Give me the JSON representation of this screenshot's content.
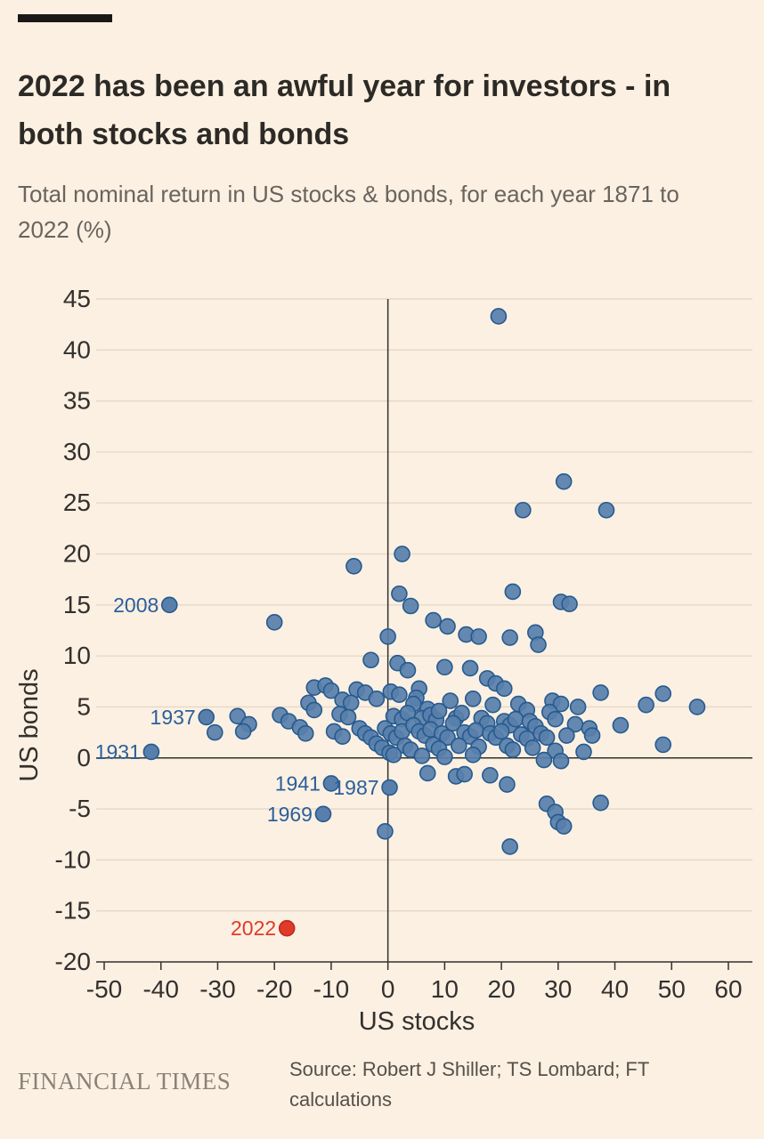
{
  "header": {
    "title": "2022 has been an awful year for investors - in both stocks and bonds",
    "subtitle": "Total nominal return in US stocks & bonds, for each year 1871 to 2022 (%)"
  },
  "footer": {
    "brand": "FINANCIAL TIMES",
    "source": "Source: Robert J Shiller; TS Lombard; FT calculations"
  },
  "chart_data": {
    "type": "scatter",
    "title": "2022 has been an awful year for investors - in both stocks and bonds",
    "subtitle": "Total nominal return in US stocks & bonds, for each year 1871 to 2022 (%)",
    "xlabel": "US stocks",
    "ylabel": "US bonds",
    "xlim": [
      -50,
      60
    ],
    "ylim": [
      -20,
      45
    ],
    "xticks": [
      -50,
      -40,
      -30,
      -20,
      -10,
      0,
      10,
      20,
      30,
      40,
      50,
      60
    ],
    "yticks": [
      45,
      40,
      35,
      30,
      25,
      20,
      15,
      10,
      5,
      0,
      -5,
      -10,
      -15,
      -20
    ],
    "grid": "horizontal",
    "legend": "none",
    "colors": {
      "background": "#fbf0e2",
      "gridline": "#e7d8c8",
      "axis_line": "#33302e",
      "dot_fill": "#587fab",
      "dot_stroke": "#265a8e",
      "annotation": "#2b5f9b",
      "highlight_fill": "#e03a2a",
      "highlight_stroke": "#bc2d20"
    },
    "points": [
      [
        19.5,
        43.3
      ],
      [
        31,
        27.1
      ],
      [
        23.8,
        24.3
      ],
      [
        38.5,
        24.3
      ],
      [
        2.5,
        20
      ],
      [
        -6,
        18.8
      ],
      [
        2,
        16.1
      ],
      [
        22,
        16.3
      ],
      [
        4,
        14.9
      ],
      [
        30.5,
        15.3
      ],
      [
        32,
        15.1
      ],
      [
        -20,
        13.3
      ],
      [
        8,
        13.5
      ],
      [
        10.5,
        12.9
      ],
      [
        13.8,
        12.1
      ],
      [
        16,
        11.9
      ],
      [
        21.5,
        11.8
      ],
      [
        26,
        12.3
      ],
      [
        0,
        11.9
      ],
      [
        26.5,
        11.1
      ],
      [
        -3,
        9.6
      ],
      [
        1.7,
        9.3
      ],
      [
        10,
        8.9
      ],
      [
        14.5,
        8.8
      ],
      [
        3.5,
        8.6
      ],
      [
        17.5,
        7.8
      ],
      [
        -13,
        6.9
      ],
      [
        -11,
        7.1
      ],
      [
        -10,
        6.6
      ],
      [
        19,
        7.3
      ],
      [
        20.5,
        6.8
      ],
      [
        -5.5,
        6.7
      ],
      [
        -4,
        6.4
      ],
      [
        0.5,
        6.5
      ],
      [
        2,
        6.2
      ],
      [
        5.5,
        6.8
      ],
      [
        37.5,
        6.4
      ],
      [
        48.5,
        6.3
      ],
      [
        5,
        5.9
      ],
      [
        -2,
        5.8
      ],
      [
        -8,
        5.7
      ],
      [
        -6.5,
        5.4
      ],
      [
        11,
        5.6
      ],
      [
        15,
        5.8
      ],
      [
        18.5,
        5.2
      ],
      [
        29,
        5.6
      ],
      [
        30.5,
        5.3
      ],
      [
        33.5,
        5.0
      ],
      [
        45.5,
        5.2
      ],
      [
        54.5,
        5.0
      ],
      [
        -14,
        5.4
      ],
      [
        -13,
        4.7
      ],
      [
        4.5,
        5.3
      ],
      [
        7,
        4.8
      ],
      [
        23,
        5.3
      ],
      [
        24.5,
        4.7
      ],
      [
        -26.5,
        4.1
      ],
      [
        -24.5,
        3.3
      ],
      [
        -19,
        4.2
      ],
      [
        -17.5,
        3.6
      ],
      [
        -8.5,
        4.3
      ],
      [
        -7,
        4.0
      ],
      [
        1,
        4.1
      ],
      [
        2.5,
        3.8
      ],
      [
        3.5,
        4.4
      ],
      [
        6.0,
        3.9
      ],
      [
        7.5,
        4.2
      ],
      [
        8.5,
        3.7
      ],
      [
        9.0,
        4.6
      ],
      [
        12,
        3.9
      ],
      [
        13,
        4.4
      ],
      [
        16.5,
        3.9
      ],
      [
        17.5,
        3.4
      ],
      [
        20.5,
        3.6
      ],
      [
        21.5,
        3.2
      ],
      [
        22.5,
        3.8
      ],
      [
        25,
        3.6
      ],
      [
        26,
        3.1
      ],
      [
        28.5,
        4.5
      ],
      [
        29.5,
        3.8
      ],
      [
        33,
        3.3
      ],
      [
        35.5,
        2.9
      ],
      [
        41,
        3.2
      ],
      [
        -30.5,
        2.5
      ],
      [
        -25.5,
        2.6
      ],
      [
        -15.5,
        3.0
      ],
      [
        -14.5,
        2.4
      ],
      [
        -9.5,
        2.6
      ],
      [
        -8,
        2.1
      ],
      [
        -5,
        2.9
      ],
      [
        -4,
        2.4
      ],
      [
        -3,
        2.0
      ],
      [
        -0.5,
        2.9
      ],
      [
        0.5,
        2.4
      ],
      [
        1.5,
        2.0
      ],
      [
        2.5,
        2.6
      ],
      [
        4.5,
        3.2
      ],
      [
        5.5,
        2.6
      ],
      [
        6.5,
        2.2
      ],
      [
        7.5,
        2.8
      ],
      [
        9.5,
        2.4
      ],
      [
        10.5,
        2.0
      ],
      [
        11.5,
        3.4
      ],
      [
        13.5,
        2.5
      ],
      [
        14.5,
        2.1
      ],
      [
        15.5,
        2.7
      ],
      [
        18,
        2.4
      ],
      [
        19,
        2.0
      ],
      [
        20,
        2.6
      ],
      [
        23.5,
        2.3
      ],
      [
        24.5,
        1.9
      ],
      [
        27,
        2.4
      ],
      [
        28,
        2.0
      ],
      [
        31.5,
        2.2
      ],
      [
        36,
        2.2
      ],
      [
        -2,
        1.4
      ],
      [
        -1,
        1.0
      ],
      [
        3,
        1.2
      ],
      [
        4,
        0.8
      ],
      [
        8,
        1.3
      ],
      [
        9,
        0.9
      ],
      [
        12.5,
        1.2
      ],
      [
        16,
        1.1
      ],
      [
        21,
        1.2
      ],
      [
        22,
        0.8
      ],
      [
        25.5,
        1.0
      ],
      [
        29.5,
        0.7
      ],
      [
        34.5,
        0.6
      ],
      [
        48.5,
        1.3
      ],
      [
        0.3,
        0.5
      ],
      [
        1,
        0.3
      ],
      [
        6,
        0.2
      ],
      [
        10,
        0.1
      ],
      [
        15,
        0.3
      ],
      [
        27.5,
        -0.2
      ],
      [
        30.5,
        -0.3
      ],
      [
        7,
        -1.5
      ],
      [
        12,
        -1.8
      ],
      [
        13.5,
        -1.6
      ],
      [
        18,
        -1.7
      ],
      [
        21,
        -2.6
      ],
      [
        28,
        -4.5
      ],
      [
        29.5,
        -5.3
      ],
      [
        37.5,
        -4.4
      ],
      [
        30,
        -6.3
      ],
      [
        31,
        -6.7
      ],
      [
        -0.5,
        -7.2
      ],
      [
        21.5,
        -8.7
      ]
    ],
    "labeled_points": [
      {
        "label": "2008",
        "x": -38.5,
        "y": 15.0,
        "highlight": false
      },
      {
        "label": "1937",
        "x": -32.0,
        "y": 4.0,
        "highlight": false
      },
      {
        "label": "1931",
        "x": -41.7,
        "y": 0.6,
        "highlight": false
      },
      {
        "label": "1941",
        "x": -10.0,
        "y": -2.5,
        "highlight": false
      },
      {
        "label": "1987",
        "x": 0.3,
        "y": -2.9,
        "highlight": false
      },
      {
        "label": "1969",
        "x": -11.4,
        "y": -5.5,
        "highlight": false
      },
      {
        "label": "2022",
        "x": -17.8,
        "y": -16.7,
        "highlight": true
      }
    ]
  }
}
